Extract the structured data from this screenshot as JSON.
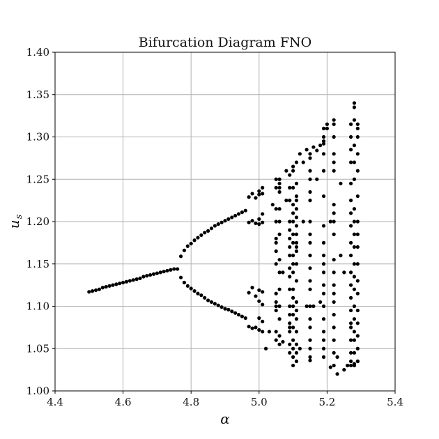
{
  "chart_data": {
    "type": "scatter",
    "title": "Bifurcation Diagram FNO",
    "xlabel": "α",
    "ylabel_main": "u",
    "ylabel_sub": "s",
    "xlim": [
      4.4,
      5.4
    ],
    "ylim": [
      1.0,
      1.4
    ],
    "xticks": [
      "4.4",
      "4.6",
      "4.8",
      "5.0",
      "5.2",
      "5.4"
    ],
    "yticks": [
      "1.00",
      "1.05",
      "1.10",
      "1.15",
      "1.20",
      "1.25",
      "1.30",
      "1.35",
      "1.40"
    ],
    "grid": true,
    "marker_color": "#000000",
    "x": [
      4.5,
      4.51,
      4.52,
      4.53,
      4.54,
      4.55,
      4.56,
      4.57,
      4.58,
      4.59,
      4.6,
      4.61,
      4.62,
      4.63,
      4.64,
      4.65,
      4.66,
      4.67,
      4.68,
      4.69,
      4.7,
      4.71,
      4.72,
      4.73,
      4.74,
      4.75,
      4.76,
      4.77,
      4.78,
      4.79,
      4.8,
      4.81,
      4.82,
      4.83,
      4.84,
      4.85,
      4.86,
      4.87,
      4.88,
      4.89,
      4.9,
      4.91,
      4.92,
      4.93,
      4.94,
      4.95,
      4.96,
      4.77,
      4.78,
      4.79,
      4.8,
      4.81,
      4.82,
      4.83,
      4.84,
      4.85,
      4.86,
      4.87,
      4.88,
      4.89,
      4.9,
      4.91,
      4.92,
      4.93,
      4.94,
      4.95,
      4.96,
      4.97,
      4.98,
      4.99,
      5.0,
      5.01,
      5.0,
      5.01,
      4.97,
      4.98,
      4.99,
      5.0,
      5.01,
      5.0,
      5.01,
      4.97,
      4.98,
      4.99,
      5.0,
      5.01,
      5.0,
      5.01,
      4.97,
      4.98,
      4.99,
      5.0,
      5.01,
      5.0,
      5.01,
      5.02,
      5.03,
      5.04,
      5.05,
      5.06,
      5.07,
      5.08,
      5.09,
      5.1,
      5.11,
      5.12,
      5.13,
      5.14,
      5.15,
      5.16,
      5.17,
      5.18,
      5.19,
      5.2,
      5.21,
      5.22,
      5.23,
      5.24,
      5.25,
      5.26,
      5.27,
      5.28,
      5.29,
      5.05,
      5.06,
      5.07,
      5.08,
      5.09,
      5.1,
      5.11,
      5.12,
      5.13,
      5.14,
      5.15,
      5.16,
      5.17,
      5.18,
      5.19,
      5.2,
      5.21,
      5.22,
      5.23,
      5.24,
      5.25,
      5.26,
      5.27,
      5.28,
      5.29,
      5.05,
      5.05,
      5.05,
      5.05,
      5.05,
      5.05,
      5.05,
      5.05,
      5.05,
      5.05,
      5.05,
      5.05,
      5.06,
      5.06,
      5.06,
      5.06,
      5.06,
      5.06,
      5.06,
      5.06,
      5.06,
      5.06,
      5.06,
      5.06,
      5.09,
      5.09,
      5.09,
      5.09,
      5.09,
      5.09,
      5.09,
      5.09,
      5.09,
      5.09,
      5.09,
      5.09,
      5.09,
      5.09,
      5.09,
      5.09,
      5.1,
      5.1,
      5.1,
      5.1,
      5.1,
      5.1,
      5.1,
      5.1,
      5.1,
      5.1,
      5.1,
      5.1,
      5.1,
      5.1,
      5.1,
      5.1,
      5.1,
      5.1,
      5.11,
      5.11,
      5.11,
      5.11,
      5.11,
      5.11,
      5.11,
      5.11,
      5.11,
      5.11,
      5.11,
      5.11,
      5.11,
      5.11,
      5.11,
      5.11,
      5.11,
      5.11,
      5.15,
      5.15,
      5.15,
      5.15,
      5.15,
      5.15,
      5.15,
      5.15,
      5.15,
      5.15,
      5.15,
      5.15,
      5.15,
      5.15,
      5.15,
      5.15,
      5.15,
      5.15,
      5.19,
      5.19,
      5.19,
      5.19,
      5.19,
      5.19,
      5.19,
      5.19,
      5.19,
      5.19,
      5.19,
      5.19,
      5.19,
      5.19,
      5.19,
      5.19,
      5.19,
      5.19,
      5.22,
      5.22,
      5.22,
      5.22,
      5.22,
      5.22,
      5.22,
      5.22,
      5.22,
      5.22,
      5.22,
      5.22,
      5.22,
      5.22,
      5.22,
      5.22,
      5.22,
      5.22,
      5.27,
      5.27,
      5.27,
      5.27,
      5.27,
      5.27,
      5.27,
      5.27,
      5.27,
      5.27,
      5.27,
      5.27,
      5.27,
      5.27,
      5.27,
      5.27,
      5.27,
      5.27,
      5.28,
      5.28,
      5.28,
      5.28,
      5.28,
      5.28,
      5.28,
      5.28,
      5.28,
      5.28,
      5.28,
      5.28,
      5.28,
      5.28,
      5.28,
      5.28,
      5.28,
      5.28,
      5.29,
      5.29,
      5.29,
      5.29,
      5.29,
      5.29,
      5.29,
      5.29,
      5.29,
      5.29,
      5.29,
      5.29,
      5.29,
      5.29,
      5.29,
      5.29
    ],
    "y": [
      1.117,
      1.118,
      1.119,
      1.12,
      1.122,
      1.123,
      1.124,
      1.125,
      1.126,
      1.127,
      1.128,
      1.129,
      1.13,
      1.131,
      1.132,
      1.133,
      1.135,
      1.136,
      1.137,
      1.138,
      1.139,
      1.14,
      1.141,
      1.142,
      1.143,
      1.144,
      1.144,
      1.159,
      1.166,
      1.171,
      1.174,
      1.178,
      1.181,
      1.184,
      1.187,
      1.189,
      1.192,
      1.195,
      1.197,
      1.199,
      1.201,
      1.203,
      1.205,
      1.207,
      1.209,
      1.211,
      1.213,
      1.134,
      1.128,
      1.124,
      1.121,
      1.118,
      1.115,
      1.113,
      1.11,
      1.107,
      1.105,
      1.103,
      1.101,
      1.099,
      1.097,
      1.096,
      1.094,
      1.092,
      1.09,
      1.088,
      1.086,
      1.199,
      1.201,
      1.198,
      1.197,
      1.199,
      1.203,
      1.209,
      1.229,
      1.233,
      1.228,
      1.236,
      1.233,
      1.232,
      1.24,
      1.116,
      1.122,
      1.112,
      1.119,
      1.117,
      1.106,
      1.102,
      1.076,
      1.074,
      1.075,
      1.072,
      1.07,
      1.086,
      1.082,
      1.05,
      1.07,
      1.22,
      1.18,
      1.25,
      1.14,
      1.26,
      1.19,
      1.03,
      1.17,
      1.28,
      1.2,
      1.285,
      1.036,
      1.288,
      1.25,
      1.29,
      1.3,
      1.31,
      1.028,
      1.315,
      1.02,
      1.245,
      1.025,
      1.03,
      1.035,
      1.34,
      1.31,
      1.1,
      1.24,
      1.058,
      1.225,
      1.075,
      1.265,
      1.23,
      1.05,
      1.27,
      1.1,
      1.28,
      1.1,
      1.284,
      1.105,
      1.292,
      1.315,
      1.2,
      1.32,
      1.04,
      1.16,
      1.14,
      1.03,
      1.08,
      1.032,
      1.035,
      1.06,
      1.07,
      1.095,
      1.105,
      1.115,
      1.15,
      1.165,
      1.175,
      1.2,
      1.215,
      1.24,
      1.25,
      1.055,
      1.065,
      1.085,
      1.1,
      1.12,
      1.14,
      1.155,
      1.185,
      1.2,
      1.215,
      1.235,
      1.245,
      1.045,
      1.055,
      1.07,
      1.08,
      1.09,
      1.1,
      1.12,
      1.135,
      1.145,
      1.16,
      1.17,
      1.18,
      1.2,
      1.225,
      1.24,
      1.255,
      1.04,
      1.05,
      1.06,
      1.075,
      1.09,
      1.1,
      1.11,
      1.12,
      1.14,
      1.15,
      1.16,
      1.175,
      1.185,
      1.2,
      1.21,
      1.22,
      1.24,
      1.26,
      1.035,
      1.045,
      1.055,
      1.07,
      1.085,
      1.095,
      1.105,
      1.13,
      1.15,
      1.165,
      1.175,
      1.185,
      1.195,
      1.205,
      1.215,
      1.225,
      1.245,
      1.27,
      1.04,
      1.05,
      1.06,
      1.075,
      1.085,
      1.1,
      1.12,
      1.13,
      1.145,
      1.16,
      1.175,
      1.185,
      1.2,
      1.225,
      1.235,
      1.25,
      1.26,
      1.275,
      1.04,
      1.05,
      1.06,
      1.07,
      1.085,
      1.1,
      1.115,
      1.125,
      1.14,
      1.15,
      1.16,
      1.175,
      1.195,
      1.23,
      1.26,
      1.28,
      1.295,
      1.31,
      1.03,
      1.045,
      1.06,
      1.075,
      1.09,
      1.105,
      1.115,
      1.125,
      1.14,
      1.155,
      1.185,
      1.2,
      1.21,
      1.22,
      1.26,
      1.27,
      1.28,
      1.3,
      1.03,
      1.045,
      1.06,
      1.075,
      1.095,
      1.11,
      1.125,
      1.14,
      1.16,
      1.175,
      1.195,
      1.21,
      1.225,
      1.245,
      1.27,
      1.285,
      1.3,
      1.315,
      1.03,
      1.045,
      1.06,
      1.07,
      1.085,
      1.1,
      1.12,
      1.135,
      1.15,
      1.17,
      1.185,
      1.2,
      1.215,
      1.25,
      1.27,
      1.29,
      1.32,
      1.335,
      1.035,
      1.05,
      1.065,
      1.08,
      1.095,
      1.115,
      1.13,
      1.15,
      1.17,
      1.185,
      1.2,
      1.23,
      1.26,
      1.28,
      1.3,
      1.315
    ]
  }
}
